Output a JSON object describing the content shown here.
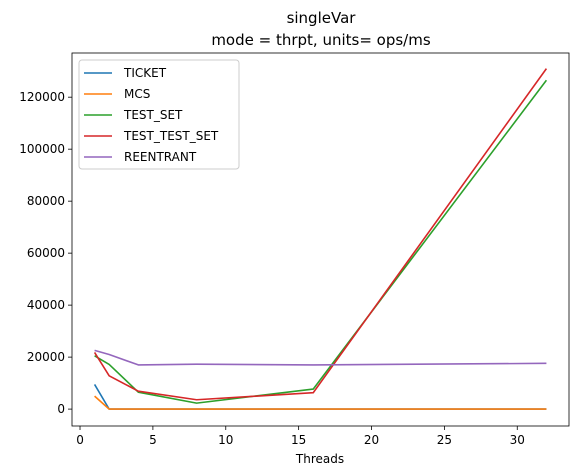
{
  "chart_data": {
    "type": "line",
    "title": "singleVar",
    "subtitle": "mode = thrpt, units= ops/ms",
    "xlabel": "Threads",
    "ylabel": "",
    "xlim": [
      -0.55,
      33.55
    ],
    "ylim": [
      -6500,
      137000
    ],
    "x_ticks": [
      0,
      5,
      10,
      15,
      20,
      25,
      30
    ],
    "y_ticks": [
      0,
      20000,
      40000,
      60000,
      80000,
      100000,
      120000
    ],
    "grid": false,
    "legend_position": "top-left",
    "x": [
      1,
      2,
      4,
      8,
      16,
      32
    ],
    "series": [
      {
        "name": "TICKET",
        "color": "#1f77b4",
        "values": [
          9500,
          0,
          0,
          0,
          0,
          0
        ]
      },
      {
        "name": "MCS",
        "color": "#ff7f0e",
        "values": [
          5000,
          0,
          0,
          0,
          0,
          0
        ]
      },
      {
        "name": "TEST_SET",
        "color": "#2ca02c",
        "values": [
          20500,
          17200,
          6500,
          2300,
          7700,
          126500
        ]
      },
      {
        "name": "TEST_TEST_SET",
        "color": "#d62728",
        "values": [
          21800,
          12800,
          6900,
          3600,
          6300,
          131000
        ]
      },
      {
        "name": "REENTRANT",
        "color": "#9467bd",
        "values": [
          22600,
          21000,
          17000,
          17300,
          17000,
          17600
        ]
      }
    ]
  }
}
